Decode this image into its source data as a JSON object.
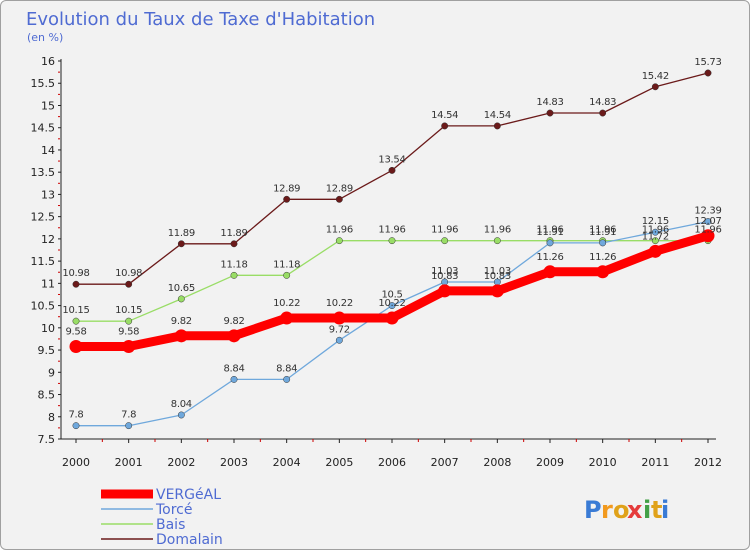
{
  "chart_data": {
    "type": "line",
    "title": "Evolution du Taux de Taxe d'Habitation",
    "subtitle": "(en %)",
    "xlabel": "",
    "ylabel": "",
    "x": [
      "2000",
      "2001",
      "2002",
      "2003",
      "2004",
      "2005",
      "2006",
      "2007",
      "2008",
      "2009",
      "2010",
      "2011",
      "2012"
    ],
    "ylim": [
      7.5,
      16
    ],
    "yticks": [
      7.5,
      8,
      8.5,
      9,
      9.5,
      10,
      10.5,
      11,
      11.5,
      12,
      12.5,
      13,
      13.5,
      14,
      14.5,
      15,
      15.5,
      16
    ],
    "grid": false,
    "series": [
      {
        "name": "VERGéAL",
        "color": "#ff0000",
        "values": [
          9.58,
          9.58,
          9.82,
          9.82,
          10.22,
          10.22,
          10.22,
          10.83,
          10.83,
          11.26,
          11.26,
          11.72,
          12.07
        ]
      },
      {
        "name": "Torcé",
        "color": "#6fa8dc",
        "values": [
          7.8,
          7.8,
          8.04,
          8.84,
          8.84,
          9.72,
          10.5,
          11.03,
          11.03,
          11.91,
          11.91,
          12.15,
          12.39
        ]
      },
      {
        "name": "Bais",
        "color": "#99dd66",
        "values": [
          10.15,
          10.15,
          10.65,
          11.18,
          11.18,
          11.96,
          11.96,
          11.96,
          11.96,
          11.96,
          11.96,
          11.96,
          11.96
        ]
      },
      {
        "name": "Domalain",
        "color": "#6b1a1a",
        "values": [
          10.98,
          10.98,
          11.89,
          11.89,
          12.89,
          12.89,
          13.54,
          14.54,
          14.54,
          14.83,
          14.83,
          15.42,
          15.73
        ]
      }
    ],
    "legend_position": "bottom-left"
  },
  "branding": {
    "logo_text": "Proxiti"
  }
}
